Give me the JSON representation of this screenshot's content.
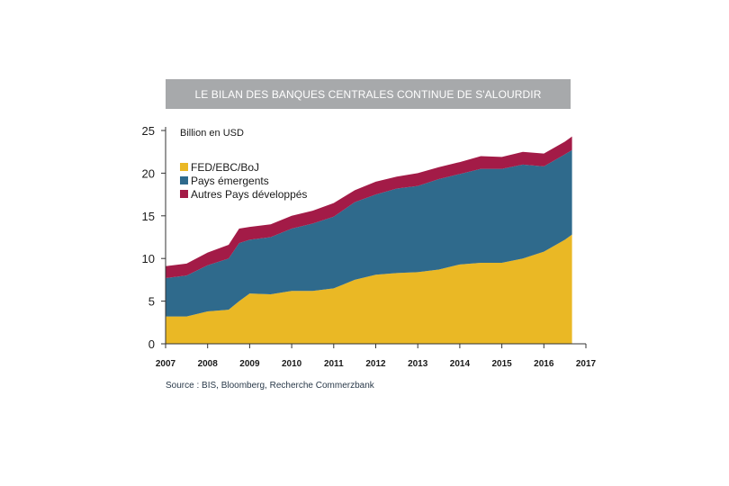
{
  "chart_data": {
    "type": "area",
    "stacked": true,
    "title": "LE BILAN DES BANQUES CENTRALES CONTINUE DE S'ALOURDIR",
    "ylabel": "Billion en USD",
    "xlabel": "",
    "xlim": [
      2007,
      2017
    ],
    "ylim": [
      0,
      25
    ],
    "x_ticks": [
      "2007",
      "2008",
      "2009",
      "2010",
      "2011",
      "2012",
      "2013",
      "2014",
      "2015",
      "2016",
      "2017"
    ],
    "y_ticks": [
      "0",
      "5",
      "10",
      "15",
      "20",
      "25"
    ],
    "grid": false,
    "legend_position": "top-left",
    "x": [
      2007.0,
      2007.5,
      2008.0,
      2008.5,
      2008.75,
      2009.0,
      2009.5,
      2010.0,
      2010.5,
      2011.0,
      2011.5,
      2012.0,
      2012.5,
      2013.0,
      2013.5,
      2014.0,
      2014.5,
      2015.0,
      2015.5,
      2016.0,
      2016.5,
      2016.67
    ],
    "series": [
      {
        "name": "FED/EBC/BoJ",
        "color": "#eab825",
        "values": [
          3.2,
          3.2,
          3.8,
          4.0,
          5.0,
          5.9,
          5.8,
          6.2,
          6.2,
          6.5,
          7.5,
          8.1,
          8.3,
          8.4,
          8.7,
          9.3,
          9.5,
          9.5,
          10.0,
          10.8,
          12.2,
          12.8
        ]
      },
      {
        "name": "Pays émergents",
        "color": "#2f6a8c",
        "values": [
          4.5,
          4.8,
          5.4,
          6.0,
          6.8,
          6.3,
          6.7,
          7.3,
          7.9,
          8.4,
          9.1,
          9.4,
          9.9,
          10.1,
          10.6,
          10.6,
          11.0,
          11.0,
          11.0,
          10.0,
          10.0,
          9.9
        ]
      },
      {
        "name": "Autres Pays développés",
        "color": "#a31b47",
        "values": [
          1.4,
          1.4,
          1.5,
          1.6,
          1.7,
          1.5,
          1.5,
          1.5,
          1.5,
          1.6,
          1.4,
          1.5,
          1.4,
          1.5,
          1.4,
          1.4,
          1.5,
          1.4,
          1.5,
          1.5,
          1.5,
          1.6
        ]
      }
    ],
    "source": "Source : BIS, Bloomberg, Recherche Commerzbank"
  }
}
